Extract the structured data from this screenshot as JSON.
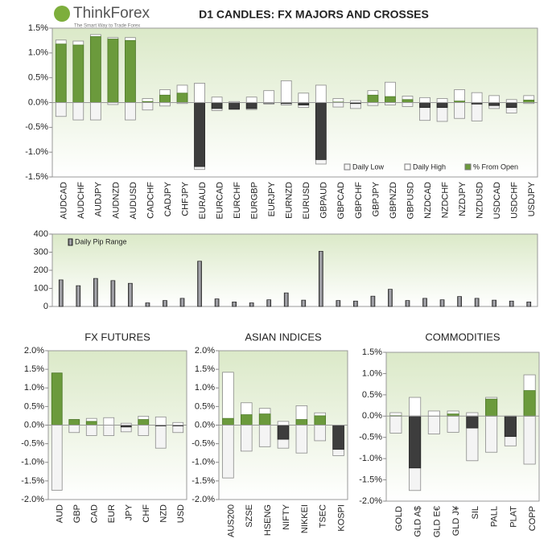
{
  "header": {
    "logo": "ThinkForex",
    "tagline": "The Smart Way to Trade Forex"
  },
  "chart_data": [
    {
      "type": "candle",
      "title": "D1 CANDLES: FX MAJORS AND CROSSES",
      "categories": [
        "AUDCAD",
        "AUDCHF",
        "AUDJPY",
        "AUDNZD",
        "AUDUSD",
        "CADCHF",
        "CADJPY",
        "CHFJPY",
        "EURAUD",
        "EURCAD",
        "EURCHF",
        "EURGBP",
        "EURJPY",
        "EURNZD",
        "EURUSD",
        "GBPAUD",
        "GBPCAD",
        "GBPCHF",
        "GBPJPY",
        "GBPNZD",
        "GBPUSD",
        "NZDCAD",
        "NZDCHF",
        "NZDJPY",
        "NZDUSD",
        "USDCAD",
        "USDCHF",
        "USDJPY"
      ],
      "series": [
        {
          "name": "Daily Low",
          "color": "#f4f4f4",
          "values": [
            -0.28,
            -0.35,
            -0.35,
            -0.04,
            -0.35,
            -0.15,
            -0.07,
            -0.02,
            -1.35,
            -0.16,
            -0.14,
            -0.14,
            -0.03,
            -0.05,
            -0.1,
            -1.24,
            -0.09,
            -0.12,
            -0.06,
            -0.05,
            -0.08,
            -0.36,
            -0.38,
            -0.32,
            -0.37,
            -0.12,
            -0.21,
            -0.02
          ]
        },
        {
          "name": "Daily High",
          "color": "#ffffff",
          "values": [
            1.26,
            1.24,
            1.37,
            1.31,
            1.31,
            0.08,
            0.26,
            0.35,
            0.39,
            0.11,
            0.02,
            0.11,
            0.24,
            0.44,
            0.19,
            0.35,
            0.08,
            0.04,
            0.24,
            0.41,
            0.13,
            0.1,
            0.08,
            0.26,
            0.2,
            0.14,
            0.06,
            0.14
          ]
        },
        {
          "name": "% From Open",
          "color": "#6b9a3c",
          "negative_color": "#3d3d3d",
          "values": [
            1.18,
            1.16,
            1.33,
            1.28,
            1.25,
            0.02,
            0.15,
            0.19,
            -1.29,
            -0.12,
            -0.13,
            -0.12,
            -0.01,
            -0.02,
            -0.05,
            -1.15,
            0.01,
            -0.02,
            0.15,
            0.12,
            0.06,
            -0.1,
            -0.1,
            0.03,
            -0.03,
            -0.06,
            -0.1,
            0.05
          ]
        }
      ],
      "ylim": [
        -1.5,
        1.5
      ],
      "yticks": [
        {
          "value": -1.5,
          "label": "-1.5%"
        },
        {
          "value": -1.0,
          "label": "-1.0%"
        },
        {
          "value": -0.5,
          "label": "-0.5%"
        },
        {
          "value": 0,
          "label": "0.0%"
        },
        {
          "value": 0.5,
          "label": "0.5%"
        },
        {
          "value": 1.0,
          "label": "1.0%"
        },
        {
          "value": 1.5,
          "label": "1.5%"
        }
      ],
      "legend": "lower right"
    },
    {
      "type": "bar",
      "series": [
        {
          "name": "Daily Pip Range",
          "color": "#7a7a80",
          "values": [
            147,
            115,
            155,
            143,
            128,
            20,
            33,
            45,
            250,
            42,
            25,
            20,
            37,
            75,
            35,
            305,
            33,
            30,
            57,
            95,
            33,
            45,
            37,
            55,
            45,
            35,
            30,
            25
          ]
        }
      ],
      "ylim": [
        0,
        400
      ],
      "yticks": [
        0,
        100,
        200,
        300,
        400
      ],
      "legend": "upper left"
    },
    {
      "type": "candle",
      "title": "FX FUTURES",
      "categories": [
        "AUD",
        "GBP",
        "CAD",
        "EUR",
        "JPY",
        "CHF",
        "NZD",
        "USD"
      ],
      "series": [
        {
          "name": "Daily Low",
          "color": "#f4f4f4",
          "values": [
            -1.75,
            -0.2,
            -0.28,
            -0.28,
            -0.18,
            -0.28,
            -0.62,
            -0.2
          ]
        },
        {
          "name": "Daily High",
          "color": "#ffffff",
          "values": [
            1.4,
            0.15,
            0.18,
            0.2,
            0.05,
            0.24,
            0.22,
            0.07
          ]
        },
        {
          "name": "% From Open",
          "color": "#6b9a3c",
          "negative_color": "#3d3d3d",
          "values": [
            1.4,
            0.15,
            0.1,
            0.0,
            -0.05,
            0.15,
            -0.02,
            -0.02
          ]
        }
      ],
      "ylim": [
        -2.0,
        2.0
      ],
      "yticks": [
        {
          "value": -2.0,
          "label": "-2.0%"
        },
        {
          "value": -1.5,
          "label": "-1.5%"
        },
        {
          "value": -1.0,
          "label": "-1.0%"
        },
        {
          "value": -0.5,
          "label": "-0.5%"
        },
        {
          "value": 0,
          "label": "0.0%"
        },
        {
          "value": 0.5,
          "label": "0.5%"
        },
        {
          "value": 1.0,
          "label": "1.0%"
        },
        {
          "value": 1.5,
          "label": "1.5%"
        },
        {
          "value": 2.0,
          "label": "2.0%"
        }
      ]
    },
    {
      "type": "candle",
      "title": "ASIAN INDICES",
      "categories": [
        "AUS200",
        "SZSE",
        "HSENG",
        "NIFTY",
        "NIKKEI",
        "TSEC",
        "KOSPI"
      ],
      "series": [
        {
          "name": "Daily Low",
          "color": "#f4f4f4",
          "values": [
            -1.42,
            -0.7,
            -0.58,
            -0.62,
            -0.75,
            -0.42,
            -0.82
          ]
        },
        {
          "name": "Daily High",
          "color": "#ffffff",
          "values": [
            1.42,
            0.6,
            0.45,
            0.1,
            0.52,
            0.33,
            0.0
          ]
        },
        {
          "name": "% From Open",
          "color": "#6b9a3c",
          "negative_color": "#3d3d3d",
          "values": [
            0.18,
            0.28,
            0.3,
            -0.38,
            0.15,
            0.25,
            -0.65
          ]
        }
      ],
      "ylim": [
        -2.0,
        2.0
      ],
      "yticks": [
        {
          "value": -2.0,
          "label": "-2.0%"
        },
        {
          "value": -1.5,
          "label": "-1.5%"
        },
        {
          "value": -1.0,
          "label": "-1.0%"
        },
        {
          "value": -0.5,
          "label": "-0.5%"
        },
        {
          "value": 0,
          "label": "0.0%"
        },
        {
          "value": 0.5,
          "label": "0.5%"
        },
        {
          "value": 1.0,
          "label": "1.0%"
        },
        {
          "value": 1.5,
          "label": "1.5%"
        },
        {
          "value": 2.0,
          "label": "2.0%"
        }
      ]
    },
    {
      "type": "candle",
      "title": "COMMODITIES",
      "categories": [
        "GOLD",
        "GLD A$",
        "GLD E€",
        "GLD J¥",
        "SIL",
        "PALL",
        "PLAT",
        "COPP"
      ],
      "series": [
        {
          "name": "Daily Low",
          "color": "#f4f4f4",
          "values": [
            -0.4,
            -1.75,
            -0.42,
            -0.38,
            -1.05,
            -0.85,
            -0.7,
            -1.13
          ]
        },
        {
          "name": "Daily High",
          "color": "#ffffff",
          "values": [
            0.08,
            0.44,
            0.12,
            0.12,
            0.08,
            0.44,
            0.0,
            0.97
          ]
        },
        {
          "name": "% From Open",
          "color": "#6b9a3c",
          "negative_color": "#3d3d3d",
          "values": [
            0.01,
            -1.22,
            0.0,
            0.05,
            -0.28,
            0.4,
            -0.48,
            0.6
          ]
        }
      ],
      "ylim": [
        -2.0,
        1.5
      ],
      "yticks": [
        {
          "value": -2.0,
          "label": "-2.0%"
        },
        {
          "value": -1.5,
          "label": "-1.5%"
        },
        {
          "value": -1.0,
          "label": "-1.0%"
        },
        {
          "value": -0.5,
          "label": "-0.5%"
        },
        {
          "value": 0,
          "label": "0.0%"
        },
        {
          "value": 0.5,
          "label": "0.5%"
        },
        {
          "value": 1.0,
          "label": "1.0%"
        },
        {
          "value": 1.5,
          "label": "1.5%"
        }
      ]
    }
  ]
}
